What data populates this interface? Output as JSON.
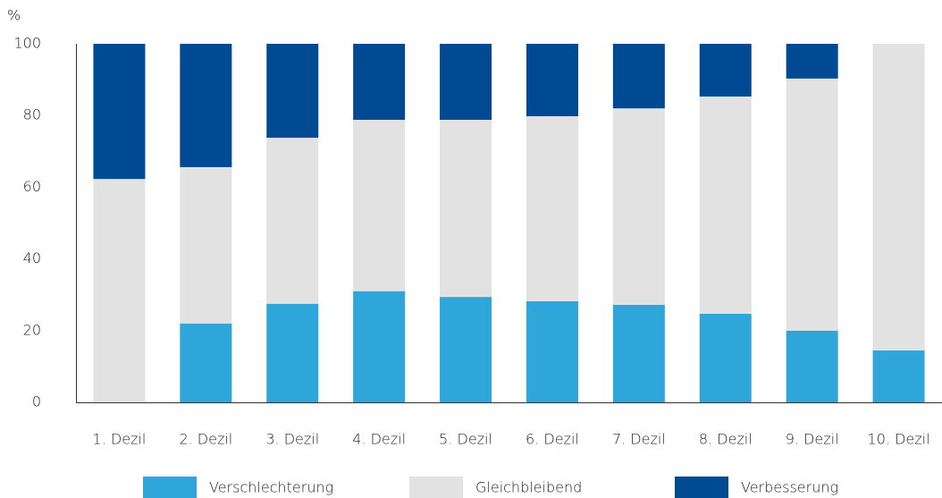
{
  "chart_data": {
    "type": "bar",
    "stacked": true,
    "y_label": "%",
    "categories": [
      "1. Dezil",
      "2. Dezil",
      "3. Dezil",
      "4. Dezil",
      "5. Dezil",
      "6. Dezil",
      "7. Dezil",
      "8. Dezil",
      "9. Dezil",
      "10. Dezil"
    ],
    "series": [
      {
        "name": "Verschlechterung",
        "color": "#2fa6da",
        "values": [
          0,
          22,
          27.5,
          31,
          29.4,
          28.2,
          27.2,
          24.7,
          20,
          14.5
        ]
      },
      {
        "name": "Gleichbleibend",
        "color": "#e2e2e2",
        "values": [
          62.3,
          43.6,
          46.3,
          47.8,
          49.4,
          51.6,
          54.8,
          60.6,
          70.3,
          85.5
        ]
      },
      {
        "name": "Verbesserung",
        "color": "#004a93",
        "values": [
          37.7,
          34.4,
          26.2,
          21.2,
          21.2,
          20.2,
          18,
          14.7,
          9.7,
          0
        ]
      }
    ],
    "ylim": [
      0,
      100
    ],
    "yticks": [
      0,
      20,
      40,
      60,
      80,
      100
    ],
    "grid": false,
    "legend": "bottom"
  }
}
